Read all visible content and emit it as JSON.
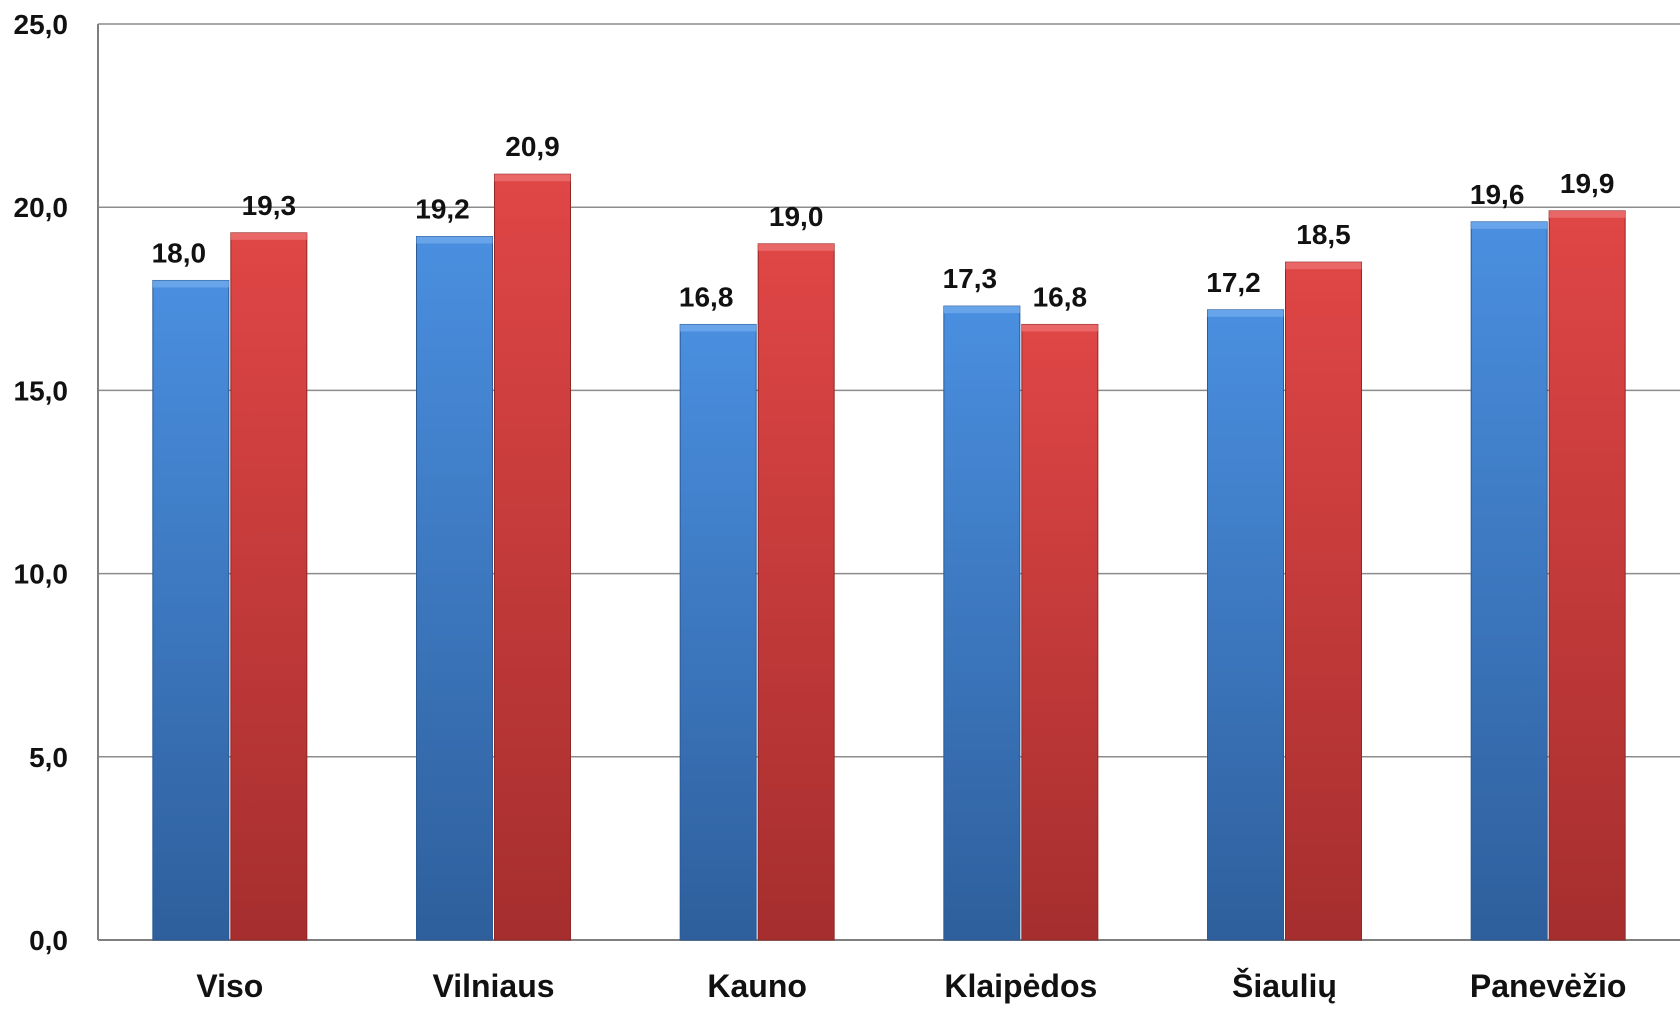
{
  "chart_data": {
    "type": "bar",
    "title": "",
    "xlabel": "",
    "ylabel": "",
    "categories": [
      "Viso",
      "Vilniaus",
      "Kauno",
      "Klaipėdos",
      "Šiaulių",
      "Panevėžio"
    ],
    "series": [
      {
        "values": [
          18.0,
          19.2,
          16.8,
          17.3,
          17.2,
          19.6
        ],
        "color": "#3a78c9"
      },
      {
        "values": [
          19.3,
          20.9,
          19.0,
          16.8,
          18.5,
          19.9
        ],
        "color": "#c93a3a"
      }
    ],
    "value_labels": [
      [
        "18,0",
        "19,2",
        "16,8",
        "17,3",
        "17,2",
        "19,6"
      ],
      [
        "19,3",
        "20,9",
        "19,0",
        "16,8",
        "18,5",
        "19,9"
      ]
    ],
    "ylim": [
      0,
      25
    ],
    "yticks": [
      0,
      5,
      10,
      15,
      20,
      25
    ],
    "ytick_labels": [
      "0,0",
      "5,0",
      "10,0",
      "15,0",
      "20,0",
      "25,0"
    ],
    "grid": true,
    "legend": "none"
  }
}
